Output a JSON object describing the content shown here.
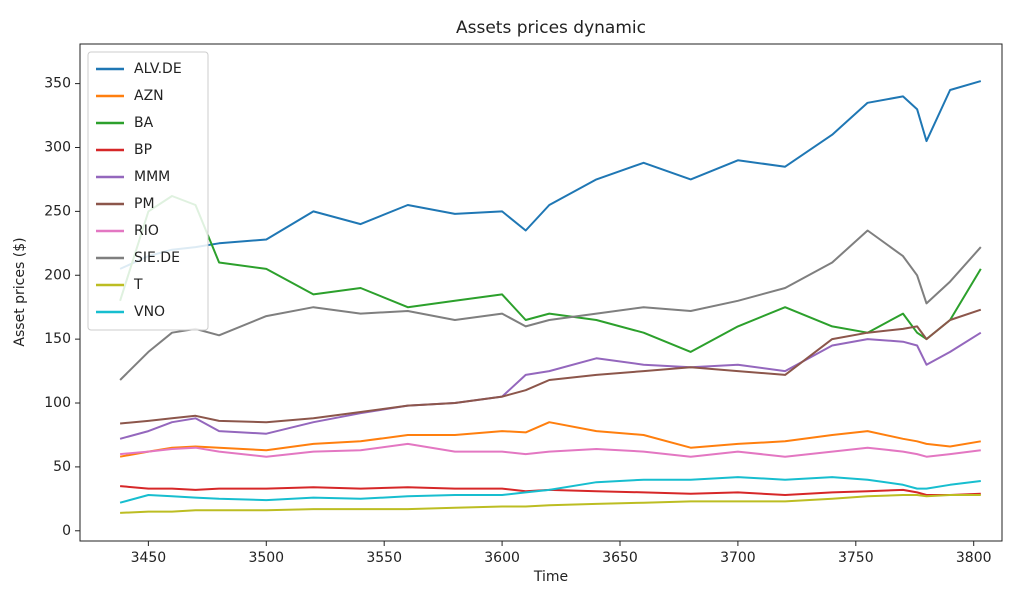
{
  "chart_data": {
    "type": "line",
    "title": "Assets prices dynamic",
    "x_label": "Time",
    "y_label": "Asset prices ($)",
    "x": [
      3438,
      3450,
      3460,
      3470,
      3480,
      3500,
      3520,
      3540,
      3560,
      3580,
      3600,
      3610,
      3620,
      3640,
      3660,
      3680,
      3700,
      3720,
      3740,
      3755,
      3770,
      3776,
      3780,
      3790,
      3803
    ],
    "series": [
      {
        "name": "ALV.DE",
        "color": "#1f77b4",
        "values": [
          205,
          215,
          220,
          222,
          225,
          228,
          250,
          240,
          255,
          248,
          250,
          235,
          255,
          275,
          288,
          275,
          290,
          285,
          310,
          335,
          340,
          330,
          305,
          345,
          352
        ]
      },
      {
        "name": "AZN",
        "color": "#ff7f0e",
        "values": [
          58,
          62,
          65,
          66,
          65,
          63,
          68,
          70,
          75,
          75,
          78,
          77,
          85,
          78,
          75,
          65,
          68,
          70,
          75,
          78,
          72,
          70,
          68,
          66,
          70
        ]
      },
      {
        "name": "BA",
        "color": "#2ca02c",
        "values": [
          180,
          250,
          262,
          255,
          210,
          205,
          185,
          190,
          175,
          180,
          185,
          165,
          170,
          165,
          155,
          140,
          160,
          175,
          160,
          155,
          170,
          155,
          150,
          165,
          205
        ]
      },
      {
        "name": "BP",
        "color": "#d62728",
        "values": [
          35,
          33,
          33,
          32,
          33,
          33,
          34,
          33,
          34,
          33,
          33,
          31,
          32,
          31,
          30,
          29,
          30,
          28,
          30,
          31,
          32,
          30,
          28,
          28,
          29
        ]
      },
      {
        "name": "MMM",
        "color": "#9467bd",
        "values": [
          72,
          78,
          85,
          88,
          78,
          76,
          85,
          92,
          98,
          100,
          105,
          122,
          125,
          135,
          130,
          128,
          130,
          125,
          145,
          150,
          148,
          145,
          130,
          140,
          155
        ]
      },
      {
        "name": "PM",
        "color": "#8c564b",
        "values": [
          84,
          86,
          88,
          90,
          86,
          85,
          88,
          93,
          98,
          100,
          105,
          110,
          118,
          122,
          125,
          128,
          125,
          122,
          150,
          155,
          158,
          160,
          150,
          165,
          173
        ]
      },
      {
        "name": "RIO",
        "color": "#e377c2",
        "values": [
          60,
          62,
          64,
          65,
          62,
          58,
          62,
          63,
          68,
          62,
          62,
          60,
          62,
          64,
          62,
          58,
          62,
          58,
          62,
          65,
          62,
          60,
          58,
          60,
          63
        ]
      },
      {
        "name": "SIE.DE",
        "color": "#7f7f7f",
        "values": [
          118,
          140,
          155,
          158,
          153,
          168,
          175,
          170,
          172,
          165,
          170,
          160,
          165,
          170,
          175,
          172,
          180,
          190,
          210,
          235,
          215,
          200,
          178,
          195,
          222
        ]
      },
      {
        "name": "T",
        "color": "#bcbd22",
        "values": [
          14,
          15,
          15,
          16,
          16,
          16,
          17,
          17,
          17,
          18,
          19,
          19,
          20,
          21,
          22,
          23,
          23,
          23,
          25,
          27,
          28,
          28,
          27,
          28,
          28
        ]
      },
      {
        "name": "VNO",
        "color": "#17becf",
        "values": [
          22,
          28,
          27,
          26,
          25,
          24,
          26,
          25,
          27,
          28,
          28,
          30,
          32,
          38,
          40,
          40,
          42,
          40,
          42,
          40,
          36,
          33,
          33,
          36,
          39
        ]
      }
    ],
    "xlim": [
      3421,
      3812
    ],
    "xticks": [
      3450,
      3500,
      3550,
      3600,
      3650,
      3700,
      3750,
      3800
    ],
    "ylim": [
      -8,
      381
    ],
    "yticks": [
      0,
      50,
      100,
      150,
      200,
      250,
      300,
      350
    ],
    "legend": "upper left"
  }
}
